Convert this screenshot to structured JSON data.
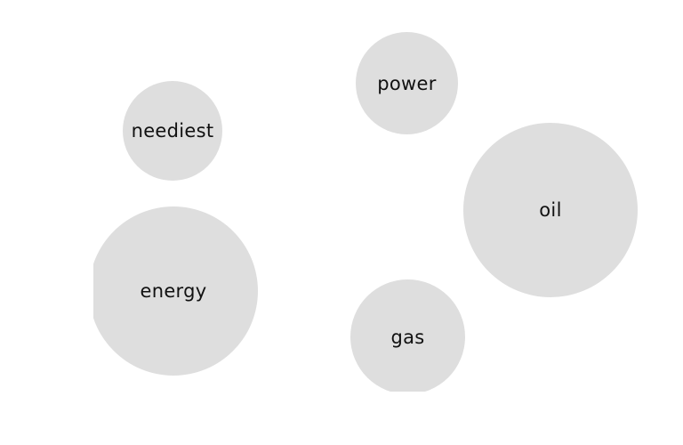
{
  "bubbles": [
    {
      "id": "neediest",
      "label": "neediest"
    },
    {
      "id": "energy",
      "label": "energy"
    },
    {
      "id": "power",
      "label": "power"
    },
    {
      "id": "oil",
      "label": "oil"
    },
    {
      "id": "gas",
      "label": "gas"
    }
  ],
  "colors": {
    "bubble_fill": "#dedede",
    "label_text": "#111111",
    "background": "#ffffff"
  }
}
